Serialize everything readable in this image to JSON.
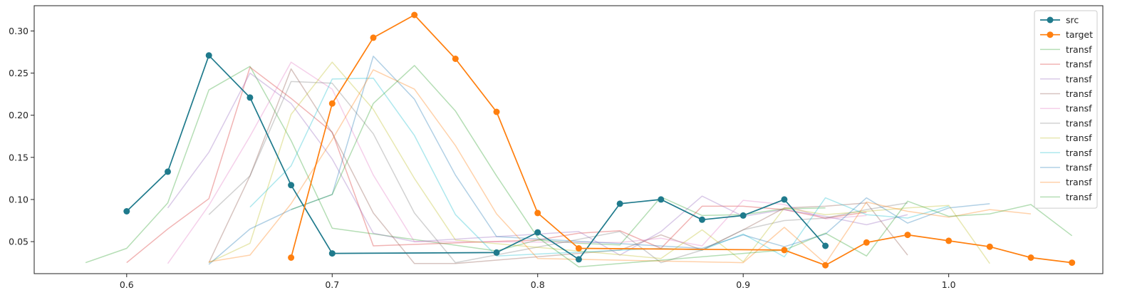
{
  "chart_data": {
    "type": "line",
    "title": "",
    "xlabel": "",
    "ylabel": "",
    "xlim": [
      0.555,
      1.075
    ],
    "ylim": [
      0.012,
      0.33
    ],
    "xticks": [
      0.6,
      0.7,
      0.8,
      0.9,
      1.0
    ],
    "xtick_labels": [
      "0.6",
      "0.7",
      "0.8",
      "0.9",
      "1.0"
    ],
    "yticks": [
      0.05,
      0.1,
      0.15,
      0.2,
      0.25,
      0.3
    ],
    "ytick_labels": [
      "0.05",
      "0.10",
      "0.15",
      "0.20",
      "0.25",
      "0.30"
    ],
    "grid": false,
    "legend_position": "top-right",
    "series": [
      {
        "name": "src",
        "color": "#1f7a8c",
        "markers": true,
        "alpha": 1.0,
        "x": [
          0.6,
          0.62,
          0.64,
          0.66,
          0.68,
          0.7,
          0.78,
          0.8,
          0.82,
          0.84,
          0.86,
          0.88,
          0.9,
          0.92,
          0.94
        ],
        "y": [
          0.086,
          0.133,
          0.271,
          0.221,
          0.117,
          0.036,
          0.037,
          0.061,
          0.029,
          0.095,
          0.1,
          0.076,
          0.081,
          0.1,
          0.045
        ]
      },
      {
        "name": "target",
        "color": "#ff7f0e",
        "markers": true,
        "alpha": 1.0,
        "x": [
          0.68,
          0.7,
          0.72,
          0.74,
          0.76,
          0.78,
          0.8,
          0.82,
          0.92,
          0.94,
          0.96,
          0.98,
          1.0,
          1.02,
          1.04,
          1.06
        ],
        "y": [
          0.031,
          0.214,
          0.292,
          0.319,
          0.267,
          0.204,
          0.084,
          0.042,
          0.04,
          0.022,
          0.049,
          0.058,
          0.051,
          0.044,
          0.031,
          0.025
        ]
      },
      {
        "name": "transf",
        "color": "#2ca02c",
        "markers": false,
        "alpha": 0.35,
        "x": [
          0.58,
          0.6,
          0.62,
          0.64,
          0.66,
          0.68,
          0.7,
          0.78,
          0.8,
          0.82,
          0.84,
          0.86,
          0.88,
          0.9,
          0.92,
          0.94
        ],
        "y": [
          0.025,
          0.042,
          0.096,
          0.23,
          0.258,
          0.17,
          0.066,
          0.039,
          0.052,
          0.048,
          0.046,
          0.103,
          0.081,
          0.082,
          0.089,
          0.09
        ]
      },
      {
        "name": "transf",
        "color": "#d62728",
        "markers": false,
        "alpha": 0.35,
        "x": [
          0.6,
          0.62,
          0.64,
          0.66,
          0.68,
          0.7,
          0.72,
          0.8,
          0.82,
          0.84,
          0.86,
          0.88,
          0.9,
          0.92,
          0.94,
          0.96
        ],
        "y": [
          0.025,
          0.065,
          0.101,
          0.257,
          0.22,
          0.18,
          0.045,
          0.052,
          0.06,
          0.063,
          0.042,
          0.092,
          0.092,
          0.088,
          0.078,
          0.085
        ]
      },
      {
        "name": "transf",
        "color": "#9467bd",
        "markers": false,
        "alpha": 0.35,
        "x": [
          0.62,
          0.64,
          0.66,
          0.68,
          0.7,
          0.72,
          0.74,
          0.82,
          0.84,
          0.86,
          0.88,
          0.9,
          0.92,
          0.94,
          0.96,
          0.98
        ],
        "y": [
          0.09,
          0.156,
          0.25,
          0.214,
          0.148,
          0.06,
          0.05,
          0.062,
          0.034,
          0.062,
          0.104,
          0.08,
          0.088,
          0.08,
          0.07,
          0.082
        ]
      },
      {
        "name": "transf",
        "color": "#8c564b",
        "markers": false,
        "alpha": 0.35,
        "x": [
          0.64,
          0.66,
          0.68,
          0.7,
          0.72,
          0.74,
          0.76,
          0.84,
          0.86,
          0.88,
          0.9,
          0.92,
          0.94,
          0.96,
          0.98
        ],
        "y": [
          0.025,
          0.128,
          0.255,
          0.179,
          0.084,
          0.024,
          0.024,
          0.04,
          0.058,
          0.04,
          0.064,
          0.09,
          0.092,
          0.096,
          0.034
        ]
      },
      {
        "name": "transf",
        "color": "#e377c2",
        "markers": false,
        "alpha": 0.35,
        "x": [
          0.62,
          0.64,
          0.66,
          0.68,
          0.7,
          0.72,
          0.74,
          0.76,
          0.84,
          0.86,
          0.88,
          0.9,
          0.92,
          0.94,
          0.96
        ],
        "y": [
          0.024,
          0.093,
          0.175,
          0.263,
          0.231,
          0.129,
          0.05,
          0.05,
          0.049,
          0.054,
          0.045,
          0.099,
          0.094,
          0.077,
          0.081
        ]
      },
      {
        "name": "transf",
        "color": "#7f7f7f",
        "markers": false,
        "alpha": 0.35,
        "x": [
          0.64,
          0.66,
          0.68,
          0.7,
          0.72,
          0.74,
          0.76,
          0.84,
          0.86,
          0.88,
          0.9,
          0.92,
          0.94,
          0.96,
          0.98
        ],
        "y": [
          0.082,
          0.128,
          0.24,
          0.238,
          0.178,
          0.084,
          0.025,
          0.062,
          0.025,
          0.04,
          0.064,
          0.075,
          0.078,
          0.088,
          0.096
        ]
      },
      {
        "name": "transf",
        "color": "#bcbd22",
        "markers": false,
        "alpha": 0.35,
        "x": [
          0.64,
          0.66,
          0.68,
          0.7,
          0.72,
          0.74,
          0.76,
          0.86,
          0.88,
          0.9,
          0.92,
          0.94,
          0.96,
          0.98,
          1.0,
          1.02
        ],
        "y": [
          0.025,
          0.048,
          0.201,
          0.263,
          0.207,
          0.125,
          0.052,
          0.03,
          0.064,
          0.026,
          0.09,
          0.082,
          0.086,
          0.09,
          0.093,
          0.024
        ]
      },
      {
        "name": "transf",
        "color": "#17becf",
        "markers": false,
        "alpha": 0.35,
        "x": [
          0.66,
          0.68,
          0.7,
          0.72,
          0.74,
          0.76,
          0.78,
          0.86,
          0.88,
          0.9,
          0.92,
          0.94,
          0.96,
          0.98,
          1.0
        ],
        "y": [
          0.091,
          0.14,
          0.243,
          0.244,
          0.176,
          0.082,
          0.033,
          0.042,
          0.04,
          0.059,
          0.032,
          0.102,
          0.082,
          0.078,
          0.092
        ]
      },
      {
        "name": "transf",
        "color": "#1f77b4",
        "markers": false,
        "alpha": 0.35,
        "x": [
          0.64,
          0.66,
          0.68,
          0.7,
          0.72,
          0.74,
          0.76,
          0.78,
          0.88,
          0.9,
          0.92,
          0.94,
          0.96,
          0.98,
          1.0,
          1.02
        ],
        "y": [
          0.023,
          0.065,
          0.088,
          0.106,
          0.27,
          0.219,
          0.129,
          0.056,
          0.042,
          0.058,
          0.044,
          0.059,
          0.102,
          0.072,
          0.09,
          0.095
        ]
      },
      {
        "name": "transf",
        "color": "#ff7f0e",
        "markers": false,
        "alpha": 0.35,
        "x": [
          0.64,
          0.66,
          0.68,
          0.7,
          0.72,
          0.74,
          0.76,
          0.78,
          0.8,
          0.9,
          0.92,
          0.94,
          0.96,
          0.98,
          1.0,
          1.02,
          1.04
        ],
        "y": [
          0.026,
          0.034,
          0.095,
          0.171,
          0.254,
          0.231,
          0.164,
          0.083,
          0.03,
          0.025,
          0.067,
          0.024,
          0.097,
          0.086,
          0.079,
          0.088,
          0.083
        ]
      },
      {
        "name": "transf",
        "color": "#2ca02c",
        "markers": false,
        "alpha": 0.35,
        "x": [
          0.68,
          0.7,
          0.72,
          0.74,
          0.76,
          0.78,
          0.8,
          0.82,
          0.92,
          0.94,
          0.96,
          0.98,
          1.0,
          1.02,
          1.04,
          1.06
        ],
        "y": [
          0.088,
          0.106,
          0.214,
          0.259,
          0.205,
          0.128,
          0.055,
          0.02,
          0.04,
          0.06,
          0.033,
          0.098,
          0.08,
          0.083,
          0.094,
          0.057
        ]
      }
    ]
  }
}
